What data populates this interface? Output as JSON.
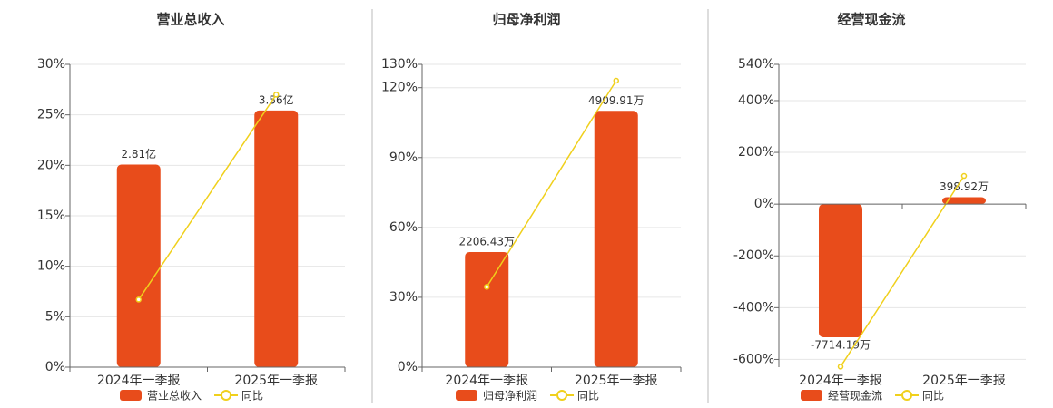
{
  "chart_data": [
    {
      "type": "bar",
      "title": "营业总收入",
      "categories": [
        "2024年一季报",
        "2025年一季报"
      ],
      "series": [
        {
          "name": "营业总收入",
          "type": "bar",
          "axis": "y2",
          "color": "#e84c1b",
          "values": [
            2.81,
            3.56
          ],
          "value_labels": [
            "2.81亿",
            "3.56亿"
          ]
        },
        {
          "name": "同比",
          "type": "line",
          "color": "#f0d01c",
          "values": [
            6.7,
            27
          ]
        }
      ],
      "ylim": [
        0,
        30
      ],
      "yticks": [
        {
          "value": 0,
          "label": "0%"
        },
        {
          "value": 5,
          "label": "5%"
        },
        {
          "value": 10,
          "label": "10%"
        },
        {
          "value": 15,
          "label": "15%"
        },
        {
          "value": 20,
          "label": "20%"
        },
        {
          "value": 25,
          "label": "25%"
        },
        {
          "value": 30,
          "label": "30%"
        }
      ],
      "y2lim": [
        0,
        4.2
      ],
      "grid": true,
      "legend": "bottom"
    },
    {
      "type": "bar",
      "title": "归母净利润",
      "categories": [
        "2024年一季报",
        "2025年一季报"
      ],
      "series": [
        {
          "name": "归母净利润",
          "type": "bar",
          "axis": "y2",
          "color": "#e84c1b",
          "values": [
            2206.43,
            4909.91
          ],
          "value_labels": [
            "2206.43万",
            "4909.91万"
          ]
        },
        {
          "name": "同比",
          "type": "line",
          "color": "#f0d01c",
          "values": [
            34.5,
            123
          ]
        }
      ],
      "ylim": [
        0,
        130
      ],
      "yticks": [
        {
          "value": 0,
          "label": "0%"
        },
        {
          "value": 30,
          "label": "30%"
        },
        {
          "value": 60,
          "label": "60%"
        },
        {
          "value": 90,
          "label": "90%"
        },
        {
          "value": 120,
          "label": "120%"
        },
        {
          "value": 130,
          "label": "130%"
        }
      ],
      "y2lim": [
        0,
        5800
      ],
      "grid": true,
      "legend": "bottom"
    },
    {
      "type": "bar",
      "title": "经营现金流",
      "categories": [
        "2024年一季报",
        "2025年一季报"
      ],
      "series": [
        {
          "name": "经营现金流",
          "type": "bar",
          "axis": "y2",
          "color": "#e84c1b",
          "values": [
            -7714.19,
            398.92
          ],
          "value_labels": [
            "-7714.19万",
            "398.92万"
          ]
        },
        {
          "name": "同比",
          "type": "line",
          "color": "#f0d01c",
          "values": [
            -628,
            109
          ]
        }
      ],
      "ylim": [
        -630,
        540
      ],
      "yticks": [
        {
          "value": -600,
          "label": "-600%"
        },
        {
          "value": -400,
          "label": "-400%"
        },
        {
          "value": -200,
          "label": "-200%"
        },
        {
          "value": 0,
          "label": "0%"
        },
        {
          "value": 200,
          "label": "200%"
        },
        {
          "value": 400,
          "label": "400%"
        },
        {
          "value": 540,
          "label": "540%"
        }
      ],
      "y2lim": [
        -9450,
        8100
      ],
      "grid": true,
      "legend": "bottom"
    }
  ]
}
